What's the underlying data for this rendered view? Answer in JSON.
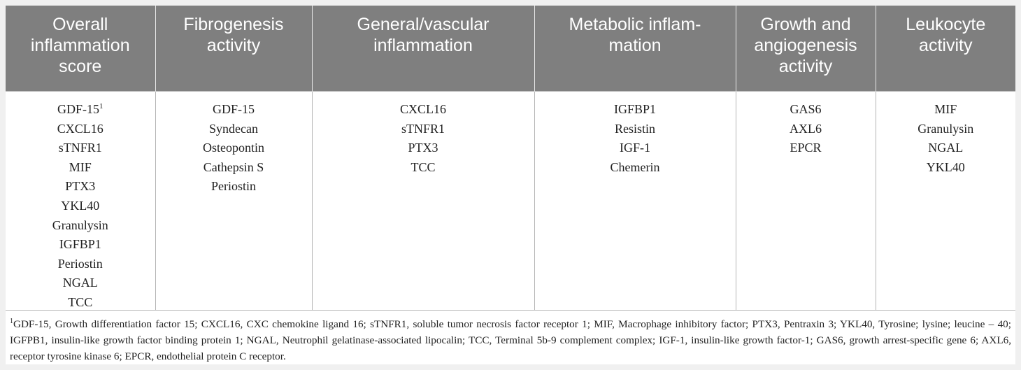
{
  "columns": [
    {
      "header": [
        "Overall",
        "inflammation",
        "score"
      ],
      "items": [
        {
          "text": "GDF-15",
          "sup": "1"
        },
        {
          "text": "CXCL16"
        },
        {
          "text": "sTNFR1"
        },
        {
          "text": "MIF"
        },
        {
          "text": "PTX3"
        },
        {
          "text": "YKL40"
        },
        {
          "text": "Granulysin"
        },
        {
          "text": "IGFBP1"
        },
        {
          "text": "Periostin"
        },
        {
          "text": "NGAL"
        },
        {
          "text": "TCC"
        }
      ]
    },
    {
      "header": [
        "Fibrogenesis",
        "activity"
      ],
      "items": [
        {
          "text": "GDF-15"
        },
        {
          "text": "Syndecan"
        },
        {
          "text": "Osteopontin"
        },
        {
          "text": "Cathepsin S"
        },
        {
          "text": "Periostin"
        }
      ]
    },
    {
      "header": [
        "General/vascular",
        "inflammation"
      ],
      "items": [
        {
          "text": "CXCL16"
        },
        {
          "text": "sTNFR1"
        },
        {
          "text": "PTX3"
        },
        {
          "text": "TCC"
        }
      ]
    },
    {
      "header": [
        "Metabolic inflam-",
        "mation"
      ],
      "items": [
        {
          "text": "IGFBP1"
        },
        {
          "text": "Resistin"
        },
        {
          "text": "IGF-1"
        },
        {
          "text": "Chemerin"
        }
      ]
    },
    {
      "header": [
        "Growth and",
        "angiogenesis",
        "activity"
      ],
      "items": [
        {
          "text": "GAS6"
        },
        {
          "text": "AXL6"
        },
        {
          "text": "EPCR"
        }
      ]
    },
    {
      "header": [
        "Leukocyte",
        "activity"
      ],
      "items": [
        {
          "text": "MIF"
        },
        {
          "text": "Granulysin"
        },
        {
          "text": "NGAL"
        },
        {
          "text": "YKL40"
        }
      ]
    }
  ],
  "footnote": {
    "marker": "1",
    "text": "GDF-15, Growth differentiation factor 15; CXCL16, CXC chemokine ligand 16; sTNFR1, soluble tumor necrosis factor receptor 1; MIF, Macrophage inhibitory factor; PTX3, Pentraxin 3; YKL40, Tyrosine; lysine; leucine – 40; IGFPB1, insulin-like growth factor binding protein 1; NGAL, Neutrophil gelatinase-associated lipocalin; TCC, Terminal 5b-9 complement complex; IGF-1, insulin-like growth factor-1; GAS6, growth arrest-specific gene 6; AXL6, receptor tyrosine kinase 6; EPCR, endothelial protein C receptor."
  }
}
